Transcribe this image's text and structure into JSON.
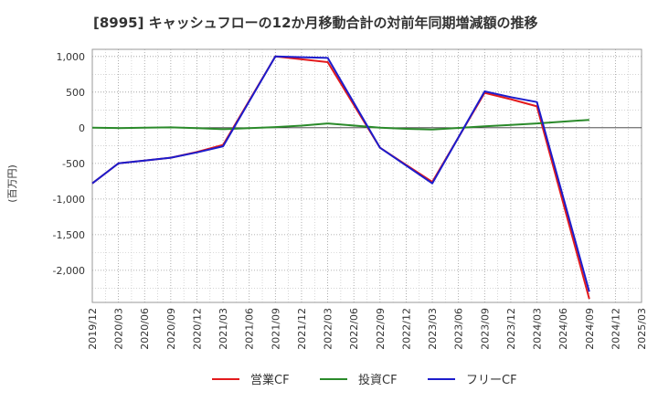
{
  "chart_data": {
    "type": "line",
    "title": "[8995]  キャッシュフローの12か月移動合計の対前年同期増減額の推移",
    "ylabel": "(百万円)",
    "xlabel": "",
    "ylim": [
      -2450,
      1100
    ],
    "yticks": [
      1000,
      500,
      0,
      -500,
      -1000,
      -1500,
      -2000
    ],
    "ytick_labels": [
      "1,000",
      "500",
      "0",
      "-500",
      "-1,000",
      "-1,500",
      "-2,000"
    ],
    "x": [
      "2019/12",
      "2020/03",
      "2020/06",
      "2020/09",
      "2020/12",
      "2021/03",
      "2021/06",
      "2021/09",
      "2021/12",
      "2022/03",
      "2022/06",
      "2022/09",
      "2022/12",
      "2023/03",
      "2023/06",
      "2023/09",
      "2023/12",
      "2024/03",
      "2024/06",
      "2024/09",
      "2024/12",
      "2025/03"
    ],
    "grid": true,
    "legend_position": "bottom",
    "series": [
      {
        "name": "営業CF",
        "color": "#e31a1c",
        "values": [
          -780,
          -500,
          -460,
          -420,
          -340,
          -240,
          null,
          1000,
          960,
          920,
          null,
          -280,
          -520,
          -760,
          null,
          490,
          400,
          300,
          null,
          -2400,
          null,
          null
        ]
      },
      {
        "name": "投資CF",
        "color": "#2a8a2a",
        "values": [
          0,
          -5,
          0,
          5,
          -5,
          -20,
          null,
          10,
          30,
          60,
          null,
          0,
          -15,
          -25,
          null,
          20,
          40,
          60,
          null,
          110,
          null,
          null
        ]
      },
      {
        "name": "フリーCF",
        "color": "#1c1ccc",
        "values": [
          -780,
          -500,
          -460,
          -420,
          -345,
          -260,
          null,
          1000,
          990,
          980,
          null,
          -280,
          -530,
          -780,
          null,
          510,
          430,
          360,
          null,
          -2300,
          null,
          null
        ]
      }
    ]
  }
}
